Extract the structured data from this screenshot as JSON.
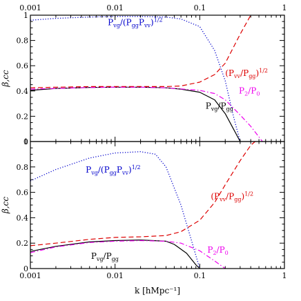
{
  "chart_data": {
    "type": "line",
    "x_scale": "log",
    "xlim": [
      0.001,
      1
    ],
    "xticks": [
      "0.001",
      "0.01",
      "0.1",
      "1"
    ],
    "xlabel": "k [hMpc⁻¹]",
    "ylabel": "β,cc",
    "panels": [
      {
        "position": "top",
        "ylim": [
          0,
          1
        ],
        "yticks": [
          "0",
          "0.2",
          "0.4",
          "0.6",
          "0.8",
          "1"
        ],
        "series": [
          {
            "style": "solid",
            "color": "#000000",
            "x": [
              0.001,
              0.002,
              0.005,
              0.01,
              0.02,
              0.04,
              0.06,
              0.1,
              0.15,
              0.2,
              0.25,
              0.3
            ],
            "y": [
              0.405,
              0.42,
              0.428,
              0.43,
              0.43,
              0.425,
              0.415,
              0.39,
              0.33,
              0.22,
              0.1,
              0.0
            ]
          },
          {
            "style": "dashed",
            "color": "#dd0000",
            "x": [
              0.001,
              0.002,
              0.005,
              0.01,
              0.02,
              0.04,
              0.06,
              0.1,
              0.15,
              0.2,
              0.3,
              0.4
            ],
            "y": [
              0.425,
              0.43,
              0.435,
              0.435,
              0.435,
              0.435,
              0.44,
              0.47,
              0.53,
              0.62,
              0.85,
              1.0
            ]
          },
          {
            "style": "dashdot",
            "color": "#ee00ee",
            "x": [
              0.001,
              0.005,
              0.01,
              0.02,
              0.04,
              0.1,
              0.15,
              0.2,
              0.3,
              0.4,
              0.55
            ],
            "y": [
              0.415,
              0.428,
              0.43,
              0.43,
              0.425,
              0.405,
              0.38,
              0.33,
              0.21,
              0.12,
              0.0
            ]
          },
          {
            "style": "dotted",
            "color": "#0000cc",
            "x": [
              0.001,
              0.002,
              0.005,
              0.01,
              0.02,
              0.04,
              0.06,
              0.1,
              0.15,
              0.2,
              0.25,
              0.3
            ],
            "y": [
              0.96,
              0.975,
              0.985,
              0.99,
              0.99,
              0.985,
              0.97,
              0.91,
              0.72,
              0.48,
              0.2,
              0.0
            ]
          }
        ],
        "labels": [
          {
            "parts": [
              [
                "P",
                ""
              ],
              [
                "vg",
                "sub"
              ],
              [
                "/(P",
                ""
              ],
              [
                "gg",
                "sub"
              ],
              [
                "P",
                ""
              ],
              [
                "vv",
                "sub"
              ],
              [
                ")",
                ""
              ],
              [
                "1/2",
                "sup"
              ]
            ],
            "color": "#0000cc",
            "x": 0.0082,
            "y": 0.92
          },
          {
            "parts": [
              [
                "(P",
                ""
              ],
              [
                "vv",
                "sub"
              ],
              [
                "/P",
                ""
              ],
              [
                "gg",
                "sub"
              ],
              [
                ")",
                ""
              ],
              [
                "1/2",
                "sup"
              ]
            ],
            "color": "#dd0000",
            "x": 0.2,
            "y": 0.52
          },
          {
            "parts": [
              [
                "P",
                ""
              ],
              [
                "2",
                "sub"
              ],
              [
                "/P",
                ""
              ],
              [
                "0",
                "sub"
              ]
            ],
            "color": "#ee00ee",
            "x": 0.29,
            "y": 0.38
          },
          {
            "parts": [
              [
                "P",
                ""
              ],
              [
                "vg",
                "sub"
              ],
              [
                "/P",
                ""
              ],
              [
                "gg",
                "sub"
              ]
            ],
            "color": "#000000",
            "x": 0.117,
            "y": 0.26
          }
        ]
      },
      {
        "position": "bottom",
        "ylim": [
          0,
          1
        ],
        "yticks": [
          "0",
          "0.2",
          "0.4",
          "0.6",
          "0.8",
          "1"
        ],
        "series": [
          {
            "style": "solid",
            "color": "#000000",
            "x": [
              0.001,
              0.002,
              0.005,
              0.01,
              0.02,
              0.04,
              0.05,
              0.07,
              0.09,
              0.1
            ],
            "y": [
              0.135,
              0.175,
              0.21,
              0.22,
              0.225,
              0.215,
              0.19,
              0.12,
              0.03,
              0.0
            ]
          },
          {
            "style": "dashed",
            "color": "#dd0000",
            "x": [
              0.001,
              0.002,
              0.005,
              0.01,
              0.02,
              0.04,
              0.06,
              0.1,
              0.15,
              0.2,
              0.3,
              0.4,
              0.45
            ],
            "y": [
              0.18,
              0.2,
              0.23,
              0.245,
              0.25,
              0.26,
              0.29,
              0.38,
              0.52,
              0.66,
              0.85,
              0.97,
              1.0
            ]
          },
          {
            "style": "dashdot",
            "color": "#ee00ee",
            "x": [
              0.001,
              0.002,
              0.005,
              0.01,
              0.02,
              0.04,
              0.06,
              0.1,
              0.15,
              0.2
            ],
            "y": [
              0.125,
              0.17,
              0.205,
              0.215,
              0.22,
              0.215,
              0.2,
              0.14,
              0.06,
              0.0
            ]
          },
          {
            "style": "dotted",
            "color": "#0000cc",
            "x": [
              0.001,
              0.002,
              0.005,
              0.01,
              0.02,
              0.03,
              0.04,
              0.06,
              0.08,
              0.1
            ],
            "y": [
              0.69,
              0.78,
              0.87,
              0.91,
              0.92,
              0.9,
              0.8,
              0.5,
              0.22,
              0.0
            ]
          }
        ],
        "labels": [
          {
            "parts": [
              [
                "P",
                ""
              ],
              [
                "vg",
                "sub"
              ],
              [
                "/(P",
                ""
              ],
              [
                "gg",
                "sub"
              ],
              [
                "P",
                ""
              ],
              [
                "vv",
                "sub"
              ],
              [
                ")",
                ""
              ],
              [
                "1/2",
                "sup"
              ]
            ],
            "color": "#0000cc",
            "x": 0.0045,
            "y": 0.755
          },
          {
            "parts": [
              [
                "(P",
                ""
              ],
              [
                "vv",
                "sub"
              ],
              [
                "/P",
                ""
              ],
              [
                "gg",
                "sub"
              ],
              [
                ")",
                ""
              ],
              [
                "1/2",
                "sup"
              ]
            ],
            "color": "#dd0000",
            "x": 0.135,
            "y": 0.545
          },
          {
            "parts": [
              [
                "P",
                ""
              ],
              [
                "2",
                "sub"
              ],
              [
                "/P",
                ""
              ],
              [
                "0",
                "sub"
              ]
            ],
            "color": "#ee00ee",
            "x": 0.123,
            "y": 0.125
          },
          {
            "parts": [
              [
                "P",
                ""
              ],
              [
                "vg",
                "sub"
              ],
              [
                "/P",
                ""
              ],
              [
                "gg",
                "sub"
              ]
            ],
            "color": "#000000",
            "x": 0.0052,
            "y": 0.075
          }
        ]
      }
    ]
  }
}
